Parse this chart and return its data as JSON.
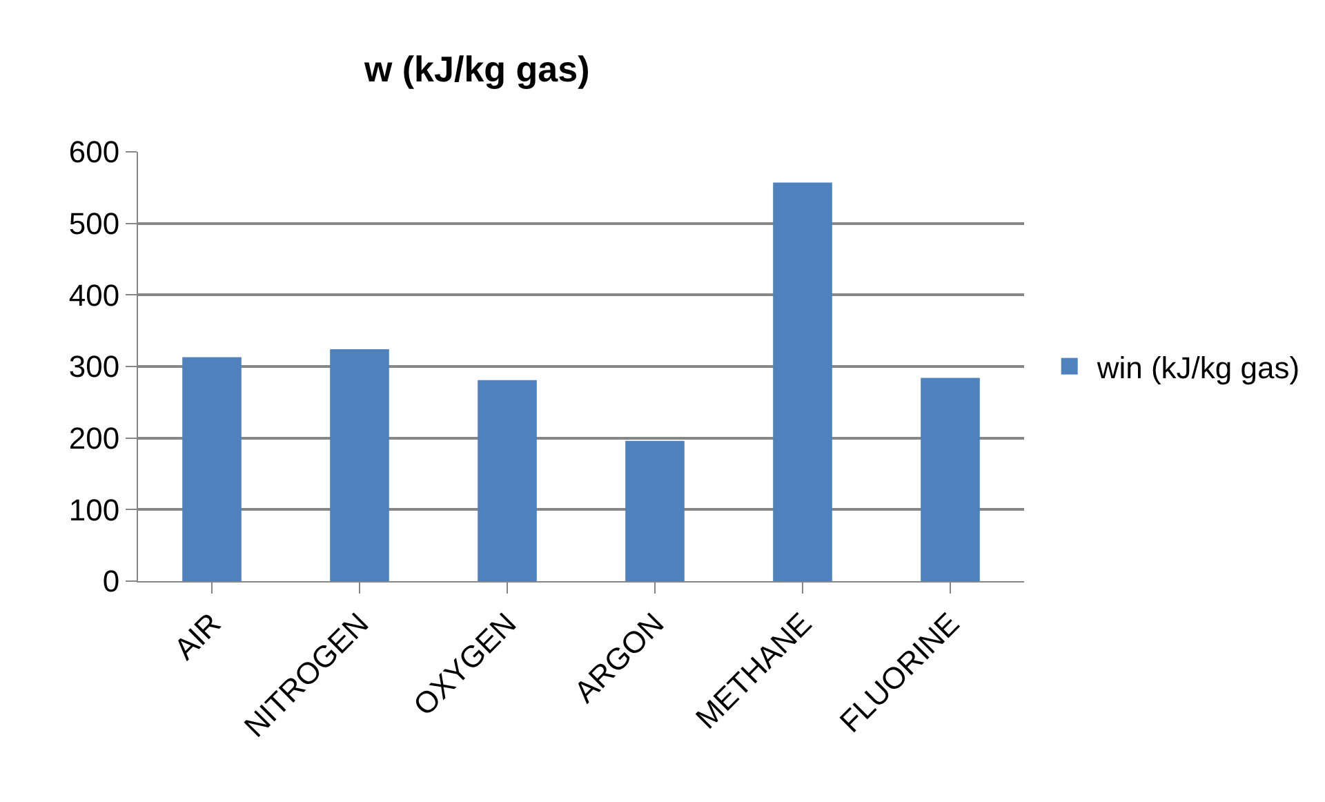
{
  "chart_data": {
    "type": "bar",
    "title": "w (kJ/kg gas)",
    "categories": [
      "AIR",
      "NITROGEN",
      "OXYGEN",
      "ARGON",
      "METHANE",
      "FLUORINE"
    ],
    "series": [
      {
        "name": "win (kJ/kg gas)",
        "color": "#4f81bd",
        "values": [
          313,
          324,
          281,
          196,
          557,
          284
        ]
      }
    ],
    "ylim": [
      0,
      600
    ],
    "yticks": [
      0,
      100,
      200,
      300,
      400,
      500,
      600
    ],
    "grid": "y",
    "legend": "right"
  }
}
